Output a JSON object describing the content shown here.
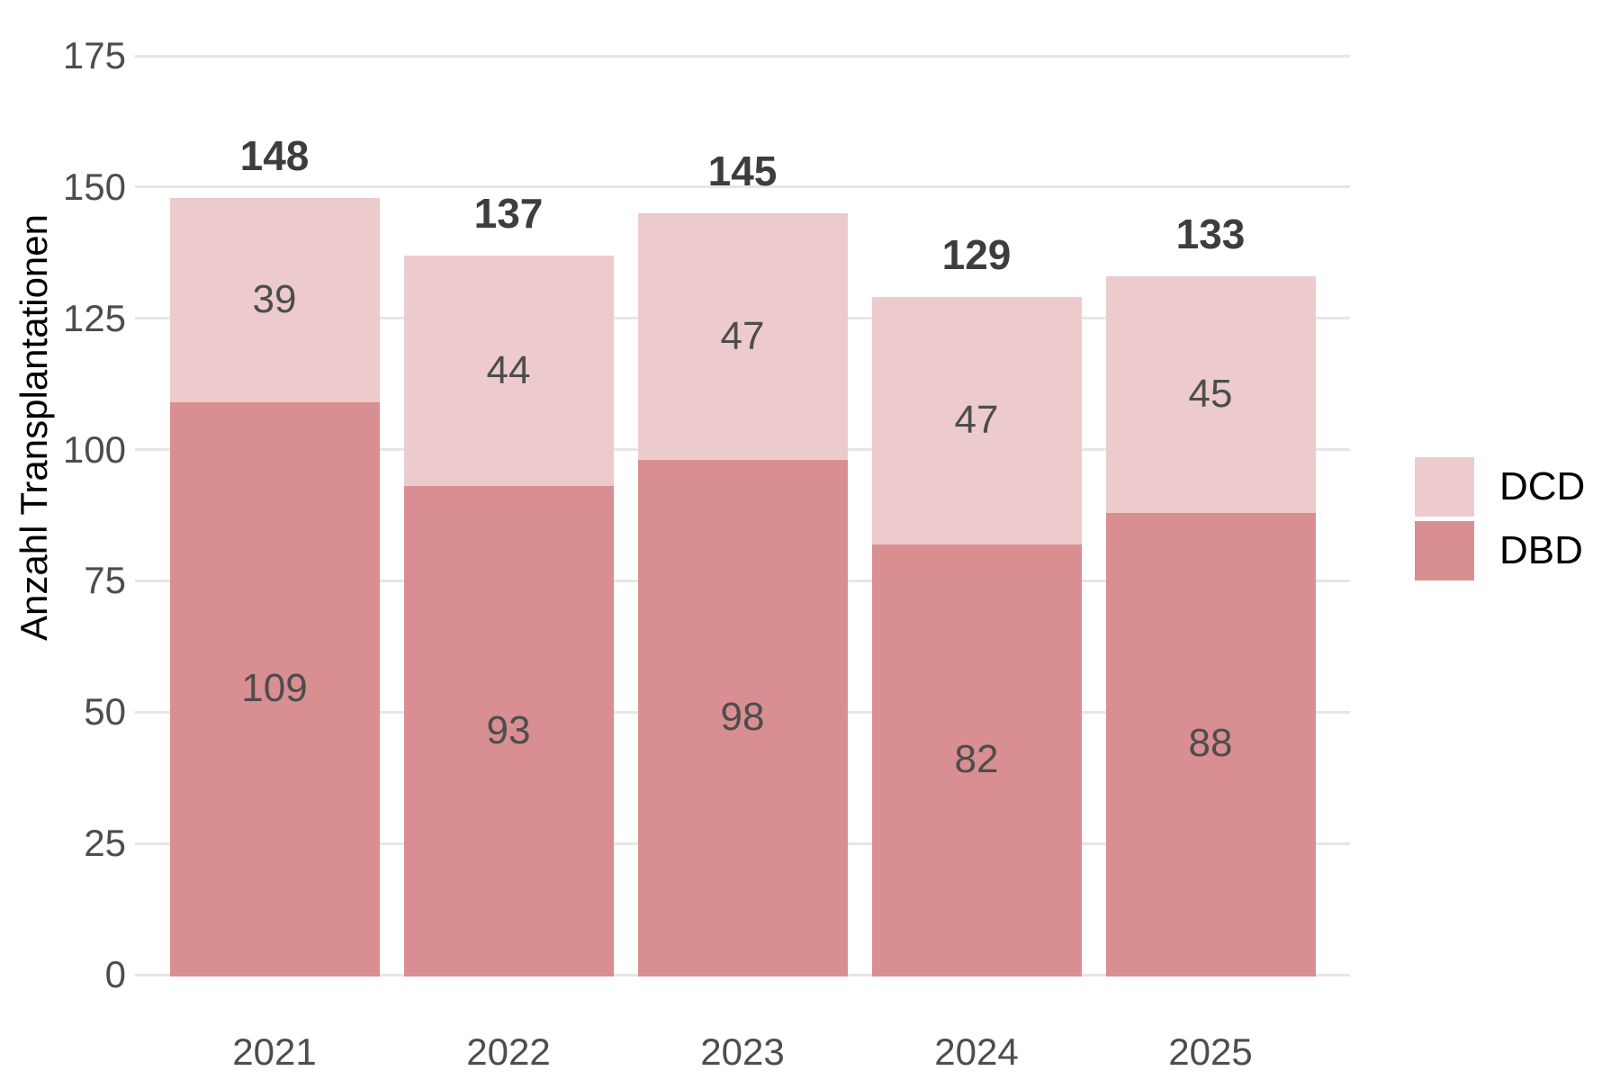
{
  "chart_data": {
    "type": "bar",
    "stacked": true,
    "categories": [
      "2021",
      "2022",
      "2023",
      "2024",
      "2025"
    ],
    "series": [
      {
        "name": "DBD",
        "color": "#d98e91",
        "values": [
          109,
          93,
          98,
          82,
          88
        ]
      },
      {
        "name": "DCD",
        "color": "#edcbcd",
        "values": [
          39,
          44,
          47,
          47,
          45
        ]
      }
    ],
    "totals": [
      148,
      137,
      145,
      129,
      133
    ],
    "title": "",
    "xlabel": "",
    "ylabel": "Anzahl Transplantationen",
    "ylim": [
      0,
      175
    ],
    "yticks": [
      0,
      25,
      50,
      75,
      100,
      125,
      150,
      175
    ],
    "grid": "horizontal",
    "legend": {
      "position": "right",
      "entries": [
        "DCD",
        "DBD"
      ]
    },
    "colors": {
      "grid": "#e6e6e6",
      "axis_text": "#4d4d4d",
      "value_text": "#4d4d4d",
      "total_text": "#3d3d3d",
      "legend_text": "#000000",
      "background": "#ffffff"
    }
  }
}
